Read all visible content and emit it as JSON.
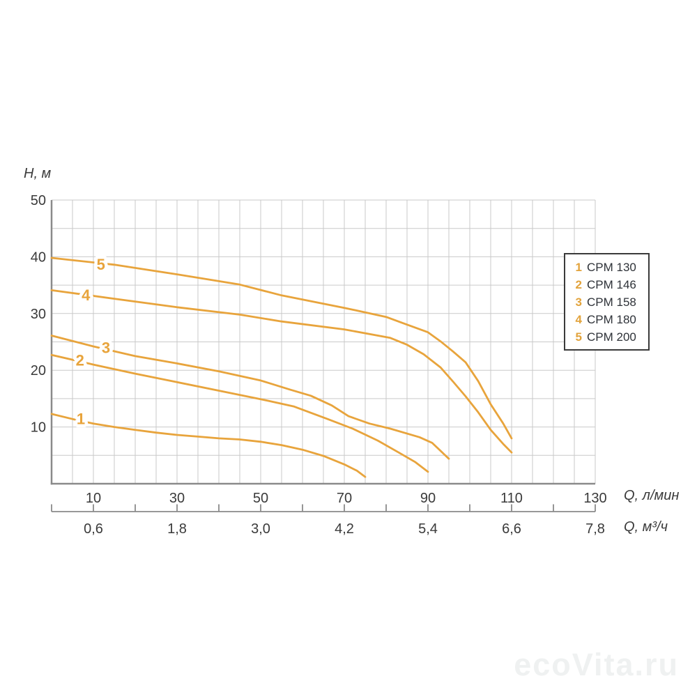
{
  "chart": {
    "y_axis_title": "H, м",
    "x_axis_unit_primary": "Q, л/мин",
    "x_axis_unit_secondary": "Q, м³/ч"
  },
  "watermark": {
    "text": "ecoVita.ru"
  },
  "chart_data": {
    "type": "line",
    "title": "",
    "xlabel_primary": "Q, л/мин",
    "xlabel_secondary": "Q, м³/ч",
    "ylabel": "H, м",
    "xlim": [
      0,
      130
    ],
    "ylim": [
      0,
      50
    ],
    "grid": {
      "on": true,
      "x_step": 5,
      "y_step": 5
    },
    "y_ticks": [
      10,
      20,
      30,
      40,
      50
    ],
    "x_ticks_primary": [
      10,
      30,
      50,
      70,
      90,
      110,
      130
    ],
    "x_ticks_secondary": [
      "0,6",
      "1,8",
      "3,0",
      "4,2",
      "5,4",
      "6,6",
      "7,8"
    ],
    "legend_position": "right-inside",
    "colors": {
      "curve": "#e8a43c",
      "curve_label": "#e8a43c",
      "grid": "#c9c9c9",
      "axis": "#8a8a8a",
      "text": "#3a3a3a",
      "legend_border": "#3a3a3a",
      "legend_text": "#2e3238",
      "watermark": "#eff1f1"
    },
    "series": [
      {
        "id": "1",
        "name": "CPM 130",
        "label_at": [
          7.0,
          11.5
        ],
        "points": [
          [
            0,
            12.3
          ],
          [
            5,
            11.4
          ],
          [
            10,
            10.6
          ],
          [
            15,
            10.0
          ],
          [
            20,
            9.5
          ],
          [
            25,
            9.0
          ],
          [
            30,
            8.6
          ],
          [
            35,
            8.3
          ],
          [
            40,
            8.0
          ],
          [
            45,
            7.8
          ],
          [
            50,
            7.4
          ],
          [
            55,
            6.8
          ],
          [
            60,
            6.0
          ],
          [
            65,
            4.9
          ],
          [
            70,
            3.4
          ],
          [
            73,
            2.3
          ],
          [
            75,
            1.2
          ]
        ]
      },
      {
        "id": "2",
        "name": "CPM 146",
        "label_at": [
          6.8,
          21.8
        ],
        "points": [
          [
            0,
            22.7
          ],
          [
            10,
            21.0
          ],
          [
            20,
            19.4
          ],
          [
            30,
            17.9
          ],
          [
            40,
            16.4
          ],
          [
            50,
            14.9
          ],
          [
            58,
            13.6
          ],
          [
            66,
            11.4
          ],
          [
            72,
            9.7
          ],
          [
            78,
            7.6
          ],
          [
            83,
            5.5
          ],
          [
            87,
            3.8
          ],
          [
            90,
            2.1
          ]
        ]
      },
      {
        "id": "3",
        "name": "CPM 158",
        "label_at": [
          13.0,
          24.0
        ],
        "points": [
          [
            0,
            26.1
          ],
          [
            10,
            24.2
          ],
          [
            20,
            22.5
          ],
          [
            30,
            21.2
          ],
          [
            40,
            19.8
          ],
          [
            50,
            18.2
          ],
          [
            57,
            16.6
          ],
          [
            62,
            15.5
          ],
          [
            67,
            13.8
          ],
          [
            71,
            11.9
          ],
          [
            76,
            10.6
          ],
          [
            81,
            9.7
          ],
          [
            88,
            8.2
          ],
          [
            91,
            7.2
          ],
          [
            95,
            4.4
          ]
        ]
      },
      {
        "id": "4",
        "name": "CPM 180",
        "label_at": [
          8.2,
          33.3
        ],
        "points": [
          [
            0,
            34.1
          ],
          [
            15,
            32.6
          ],
          [
            30,
            31.1
          ],
          [
            45,
            29.8
          ],
          [
            55,
            28.6
          ],
          [
            70,
            27.2
          ],
          [
            81,
            25.7
          ],
          [
            85,
            24.5
          ],
          [
            89,
            22.8
          ],
          [
            93,
            20.5
          ],
          [
            96,
            18.0
          ],
          [
            99,
            15.4
          ],
          [
            102,
            12.6
          ],
          [
            105,
            9.5
          ],
          [
            108,
            7.0
          ],
          [
            110,
            5.5
          ]
        ]
      },
      {
        "id": "5",
        "name": "CPM 200",
        "label_at": [
          11.8,
          38.7
        ],
        "points": [
          [
            0,
            39.8
          ],
          [
            15,
            38.6
          ],
          [
            30,
            36.9
          ],
          [
            45,
            35.1
          ],
          [
            55,
            33.2
          ],
          [
            70,
            31.0
          ],
          [
            80,
            29.4
          ],
          [
            84,
            28.3
          ],
          [
            90,
            26.7
          ],
          [
            93,
            25.1
          ],
          [
            96,
            23.3
          ],
          [
            99,
            21.4
          ],
          [
            102,
            18.1
          ],
          [
            105,
            14.0
          ],
          [
            108,
            10.6
          ],
          [
            110,
            8.0
          ]
        ]
      }
    ]
  }
}
